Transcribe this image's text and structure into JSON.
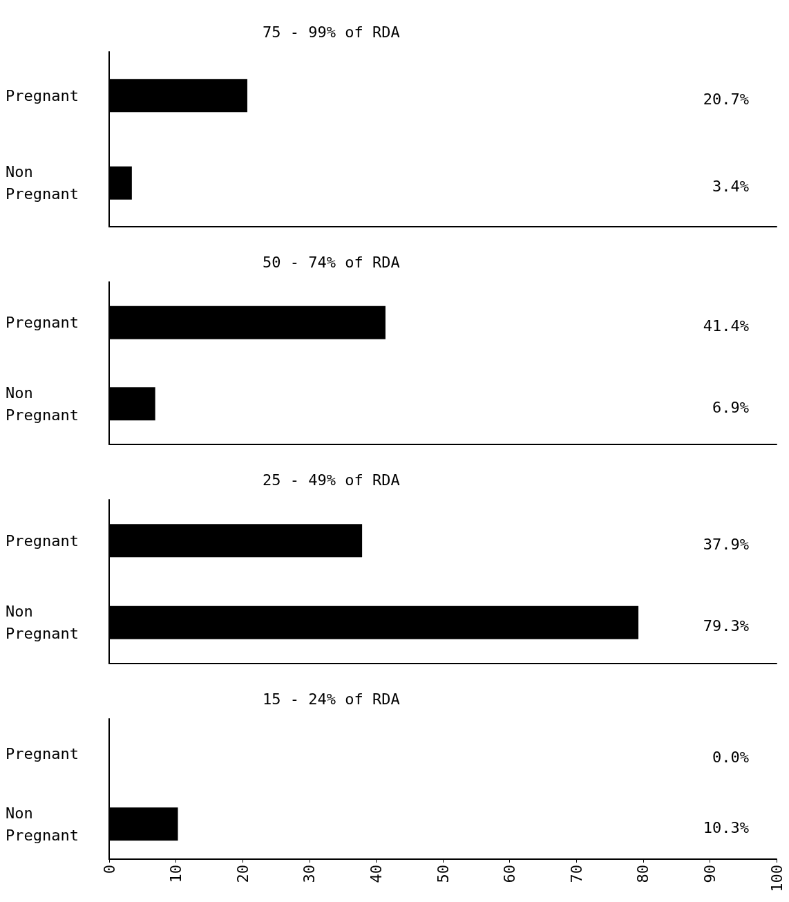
{
  "chart_data": [
    {
      "type": "bar",
      "orientation": "horizontal",
      "title": "75 - 99% of RDA",
      "categories": [
        "Pregnant",
        "Non Pregnant"
      ],
      "values": [
        20.7,
        3.4
      ],
      "value_labels": [
        "20.7%",
        "3.4%"
      ],
      "color": "#000000",
      "xlim": [
        0,
        100
      ],
      "xticks": [
        0,
        10,
        20,
        30,
        40,
        50,
        60,
        70,
        80,
        90,
        100
      ],
      "tick_labels": "y",
      "grid": false
    },
    {
      "type": "bar",
      "orientation": "horizontal",
      "title": "50 - 74% of RDA",
      "categories": [
        "Pregnant",
        "Non Pregnant"
      ],
      "values": [
        41.4,
        6.9
      ],
      "value_labels": [
        "41.4%",
        "6.9%"
      ],
      "color": "#000000",
      "xlim": [
        0,
        100
      ],
      "xticks": [
        0,
        10,
        20,
        30,
        40,
        50,
        60,
        70,
        80,
        90,
        100
      ],
      "tick_labels": "y",
      "grid": false
    },
    {
      "type": "bar",
      "orientation": "horizontal",
      "title": "25 - 49% of RDA",
      "categories": [
        "Pregnant",
        "Non Pregnant"
      ],
      "values": [
        37.9,
        79.3
      ],
      "value_labels": [
        "37.9%",
        "79.3%"
      ],
      "color": "#000000",
      "xlim": [
        0,
        100
      ],
      "xticks": [
        0,
        10,
        20,
        30,
        40,
        50,
        60,
        70,
        80,
        90,
        100
      ],
      "tick_labels": "y",
      "grid": false
    },
    {
      "type": "bar",
      "orientation": "horizontal",
      "title": "15 - 24% of RDA",
      "categories": [
        "Pregnant",
        "Non Pregnant"
      ],
      "values": [
        0.0,
        10.3
      ],
      "value_labels": [
        "0.0%",
        "10.3%"
      ],
      "color": "#000000",
      "xlim": [
        0,
        100
      ],
      "xticks": [
        0,
        10,
        20,
        30,
        40,
        50,
        60,
        70,
        80,
        90,
        100
      ],
      "grid": false
    }
  ]
}
